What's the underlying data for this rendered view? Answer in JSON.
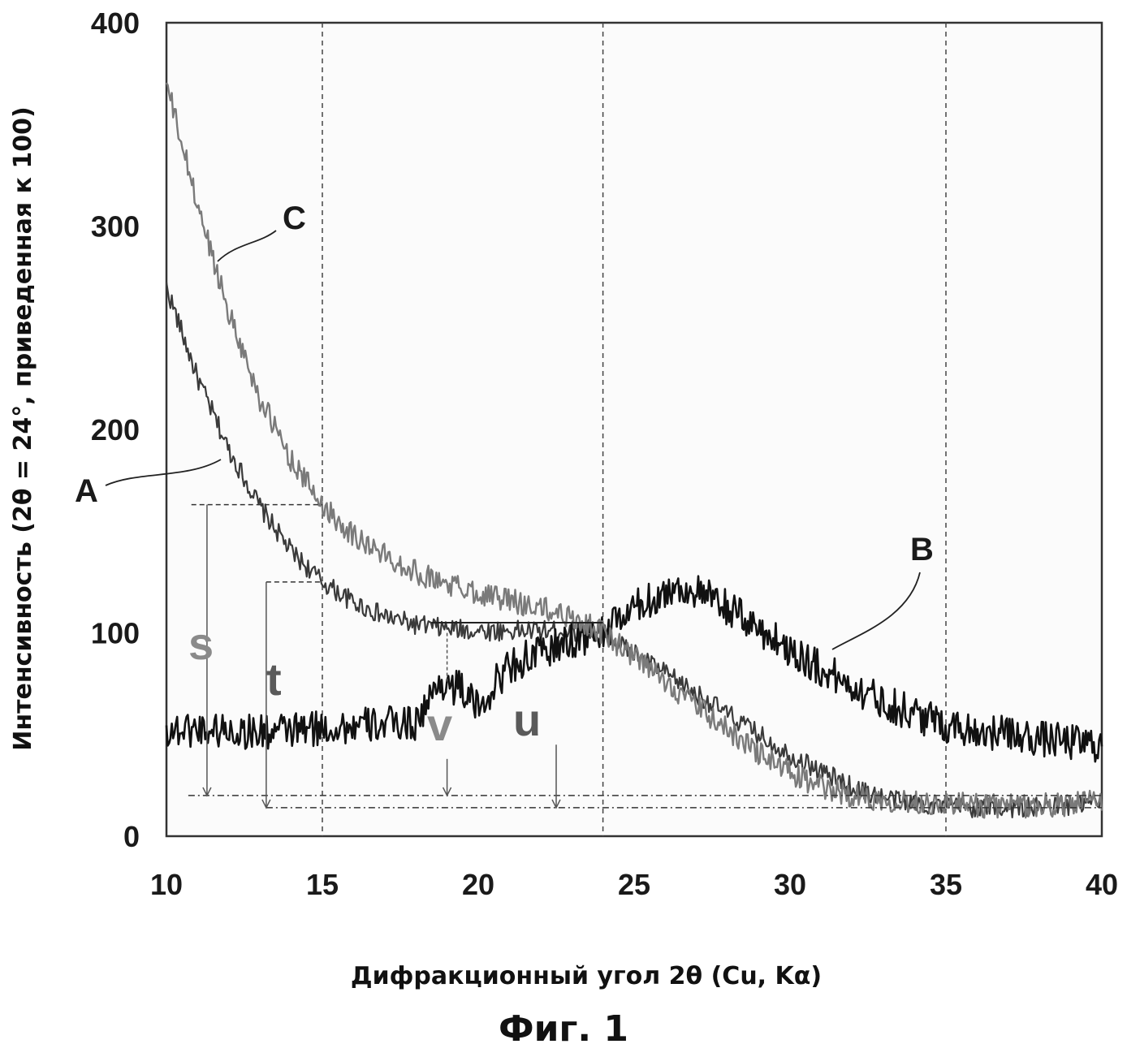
{
  "figure_caption": "Фиг. 1",
  "chart_data": {
    "type": "line",
    "xlabel": "Дифракционный угол 2θ (Cu, Kα)",
    "ylabel": "Интенсивность (2θ = 24°, приведенная к 100)",
    "xlim": [
      10,
      40
    ],
    "ylim": [
      0,
      400
    ],
    "xticks": [
      "10",
      "15",
      "20",
      "25",
      "30",
      "35",
      "40"
    ],
    "yticks": [
      "0",
      "100",
      "200",
      "300",
      "400"
    ],
    "grid": "vertical dashed lines at x = 15, 24, 35",
    "vertical_reference_lines": [
      15,
      24,
      35
    ],
    "series": [
      {
        "name": "A",
        "color": "#3a3a3a",
        "x": [
          10,
          11,
          12,
          13,
          14,
          15,
          16,
          17,
          18,
          19,
          20,
          21,
          22,
          23,
          24,
          25,
          26,
          27,
          28,
          29,
          30,
          31,
          32,
          33,
          34,
          35,
          36,
          37,
          38,
          39,
          40
        ],
        "y": [
          270,
          225,
          190,
          162,
          140,
          125,
          115,
          108,
          104,
          102,
          101,
          101,
          101,
          101,
          100,
          90,
          80,
          70,
          60,
          50,
          40,
          32,
          24,
          19,
          16,
          15,
          14,
          14,
          14,
          15,
          16
        ]
      },
      {
        "name": "B",
        "color": "#111111",
        "x": [
          10,
          11,
          12,
          13,
          14,
          15,
          16,
          17,
          18,
          18.8,
          19.5,
          20,
          20.5,
          21,
          22,
          23,
          24,
          25,
          26,
          26.5,
          27,
          28,
          29,
          30,
          31,
          32,
          33,
          34,
          35,
          36,
          37,
          38,
          39,
          40
        ],
        "y": [
          52,
          53,
          52,
          51,
          52,
          53,
          54,
          55,
          56,
          76,
          72,
          62,
          74,
          84,
          90,
          96,
          100,
          112,
          120,
          122,
          120,
          112,
          102,
          92,
          82,
          74,
          66,
          60,
          55,
          52,
          50,
          48,
          46,
          45
        ]
      },
      {
        "name": "C",
        "color": "#7a7a7a",
        "x": [
          10,
          11,
          12,
          13,
          14,
          15,
          16,
          17,
          18,
          19,
          20,
          21,
          22,
          23,
          24,
          25,
          26,
          27,
          28,
          29,
          30,
          31,
          32,
          33,
          34,
          35,
          36,
          37,
          38,
          39,
          40
        ],
        "y": [
          370,
          310,
          258,
          215,
          185,
          163,
          148,
          138,
          130,
          124,
          120,
          116,
          112,
          108,
          100,
          88,
          76,
          64,
          52,
          41,
          31,
          24,
          20,
          18,
          17,
          16,
          15,
          15,
          15,
          16,
          17
        ]
      }
    ],
    "annotations": [
      {
        "label": "A",
        "color": "#1a1a1a"
      },
      {
        "label": "B",
        "color": "#1a1a1a"
      },
      {
        "label": "C",
        "color": "#1a1a1a"
      },
      {
        "label": "s",
        "color": "#8a8a8a"
      },
      {
        "label": "t",
        "color": "#5a5a5a"
      },
      {
        "label": "v",
        "color": "#8a8a8a"
      },
      {
        "label": "u",
        "color": "#5a5a5a"
      }
    ]
  }
}
